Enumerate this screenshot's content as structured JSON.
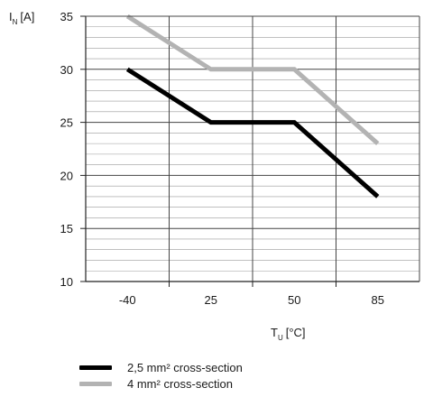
{
  "chart_data": {
    "type": "line",
    "x": [
      "-40",
      "25",
      "50",
      "85"
    ],
    "series": [
      {
        "name": "2,5 mm² cross-section",
        "color": "#000000",
        "values": [
          30,
          25,
          25,
          18
        ]
      },
      {
        "name": "4 mm² cross-section",
        "color": "#b3b3b3",
        "values": [
          35,
          30,
          30,
          23
        ]
      }
    ],
    "ylabel": "I_N [A]",
    "ylabel_main": "I",
    "ylabel_sub": "N",
    "ylabel_unit": "[A]",
    "xlabel": "T_U [°C]",
    "xlabel_main": "T",
    "xlabel_sub": "U",
    "xlabel_unit": "[°C]",
    "ylim": [
      10,
      35
    ],
    "yticks": [
      "10",
      "15",
      "20",
      "25",
      "30",
      "35"
    ],
    "grid": true,
    "legend_position": "bottom-left"
  }
}
